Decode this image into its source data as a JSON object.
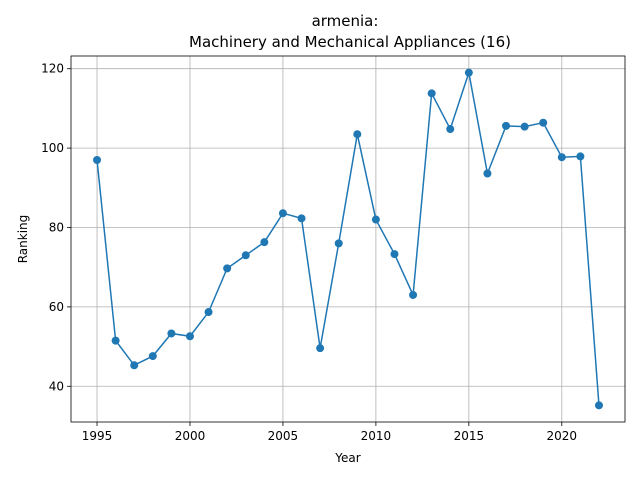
{
  "chart_data": {
    "type": "line",
    "title_line1": "armenia:",
    "title_line2": "Machinery and Mechanical Appliances (16)",
    "xlabel": "Year",
    "ylabel": "Ranking",
    "xlim": [
      1993.6,
      2023.4
    ],
    "ylim": [
      31.0,
      123.2
    ],
    "xticks": [
      1995,
      2000,
      2005,
      2010,
      2015,
      2020
    ],
    "yticks": [
      40,
      60,
      80,
      100,
      120
    ],
    "grid": true,
    "marker": "circle",
    "line_color": "#1f77b4",
    "series": [
      {
        "x": [
          1995,
          1996,
          1997,
          1998,
          1999,
          2000,
          2001,
          2002,
          2003,
          2004,
          2005,
          2006,
          2007,
          2008,
          2009,
          2010,
          2011,
          2012,
          2013,
          2014,
          2015,
          2016,
          2017,
          2018,
          2019,
          2020,
          2021,
          2022
        ],
        "values": [
          97.0,
          51.5,
          45.3,
          47.6,
          53.3,
          52.6,
          58.7,
          69.7,
          73.0,
          76.3,
          83.6,
          82.3,
          49.6,
          76.0,
          103.5,
          82.0,
          73.3,
          63.0,
          113.8,
          104.8,
          119.0,
          93.6,
          105.6,
          105.4,
          106.4,
          97.7,
          97.9,
          35.2
        ]
      }
    ]
  }
}
